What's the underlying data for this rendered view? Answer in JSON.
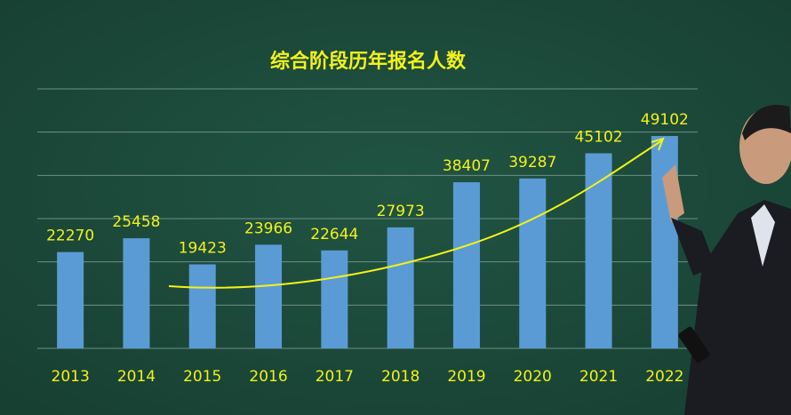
{
  "chart_data": {
    "type": "bar",
    "title": "综合阶段历年报名人数",
    "categories": [
      "2013",
      "2014",
      "2015",
      "2016",
      "2017",
      "2018",
      "2019",
      "2020",
      "2021",
      "2022"
    ],
    "values": [
      22270,
      25458,
      19423,
      23966,
      22644,
      27973,
      38407,
      39287,
      45102,
      49102
    ],
    "color": "#5b9bd5",
    "ylim": [
      0,
      60000
    ],
    "yticks": [
      0,
      10000,
      20000,
      30000,
      40000,
      50000,
      60000
    ],
    "grid": true
  }
}
